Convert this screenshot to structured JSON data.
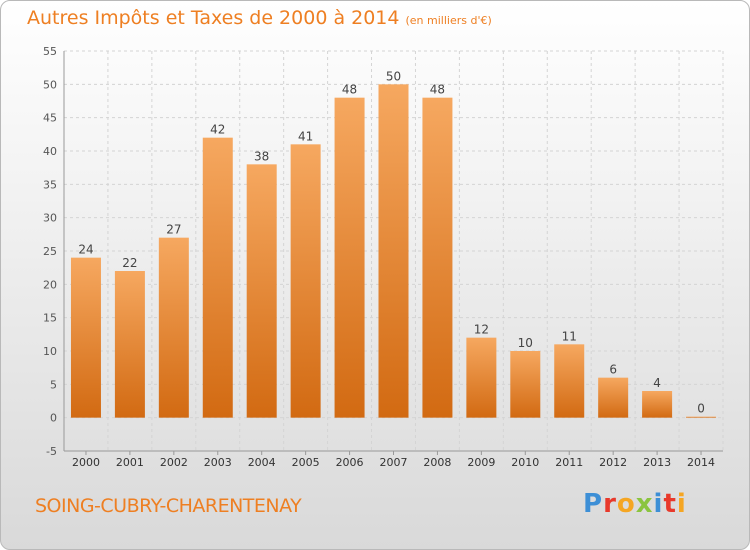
{
  "header": {
    "title": "Autres Impôts et Taxes de 2000 à 2014",
    "unit": "(en milliers d'€)"
  },
  "footer": {
    "commune": "SOING-CUBRY-CHARENTENAY",
    "logo_text": "Proxiti",
    "logo_colors": [
      "#3d8fd6",
      "#e8392b",
      "#f5a623",
      "#8bc43f",
      "#3d8fd6",
      "#e8392b",
      "#f5a623"
    ]
  },
  "colors": {
    "accent": "#ee7f22",
    "bar_light": "#f6a860",
    "bar_dark": "#d26a12",
    "grid": "#d4d4d4"
  },
  "chart_data": {
    "type": "bar",
    "categories": [
      "2000",
      "2001",
      "2002",
      "2003",
      "2004",
      "2005",
      "2006",
      "2007",
      "2008",
      "2009",
      "2010",
      "2011",
      "2012",
      "2013",
      "2014"
    ],
    "values": [
      24,
      22,
      27,
      42,
      38,
      41,
      48,
      50,
      48,
      12,
      10,
      11,
      6,
      4,
      0
    ],
    "ylim": [
      -5,
      55
    ],
    "yticks": [
      -5,
      0,
      5,
      10,
      15,
      20,
      25,
      30,
      35,
      40,
      45,
      50,
      55
    ],
    "grid": true,
    "xlabel": "",
    "ylabel": ""
  }
}
